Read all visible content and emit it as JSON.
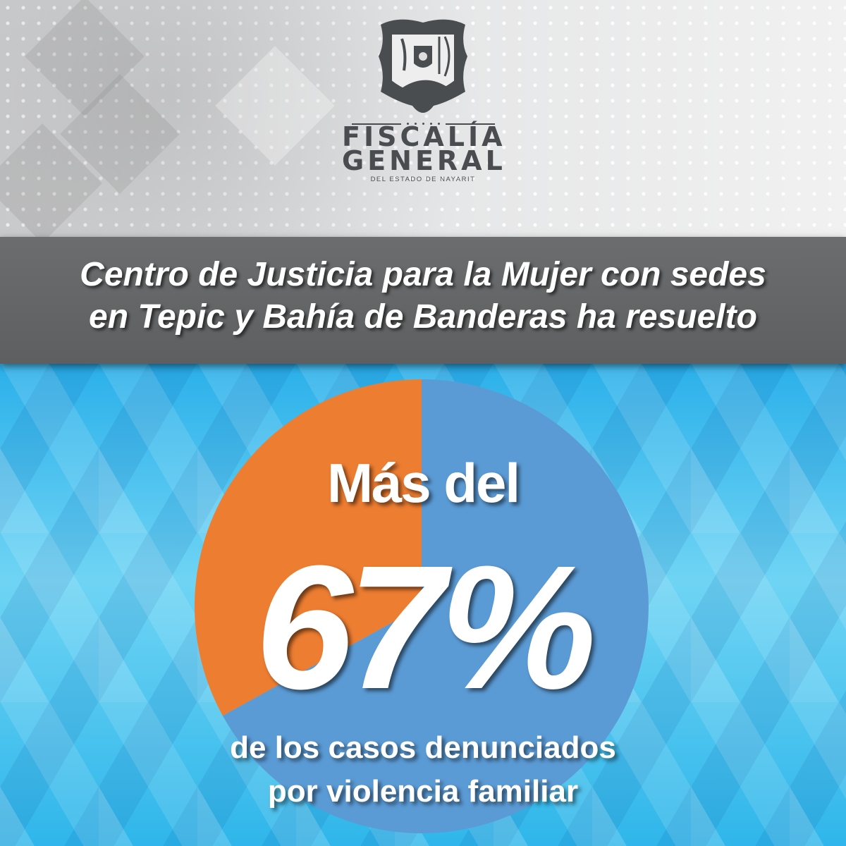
{
  "logo": {
    "line1": "FISCALÍA",
    "line2": "GENERAL",
    "line3": "DEL ESTADO DE NAYARIT"
  },
  "headline": {
    "line1": "Centro de Justicia para la Mujer con sedes",
    "line2": "en Tepic y Bahía de Banderas ha resuelto"
  },
  "stat": {
    "prefix": "Más del",
    "value": "67%",
    "caption_line1": "de los casos denunciados",
    "caption_line2": "por violencia familiar"
  },
  "colors": {
    "resolved": "#5b9bd5",
    "other": "#ed7d31",
    "banner": "#666768"
  },
  "chart_data": {
    "type": "pie",
    "slices": [
      {
        "value": 67,
        "color": "#5b9bd5"
      },
      {
        "value": 33,
        "color": "#ed7d31"
      }
    ],
    "start": "12 o'clock",
    "title": "",
    "legend": "none"
  }
}
